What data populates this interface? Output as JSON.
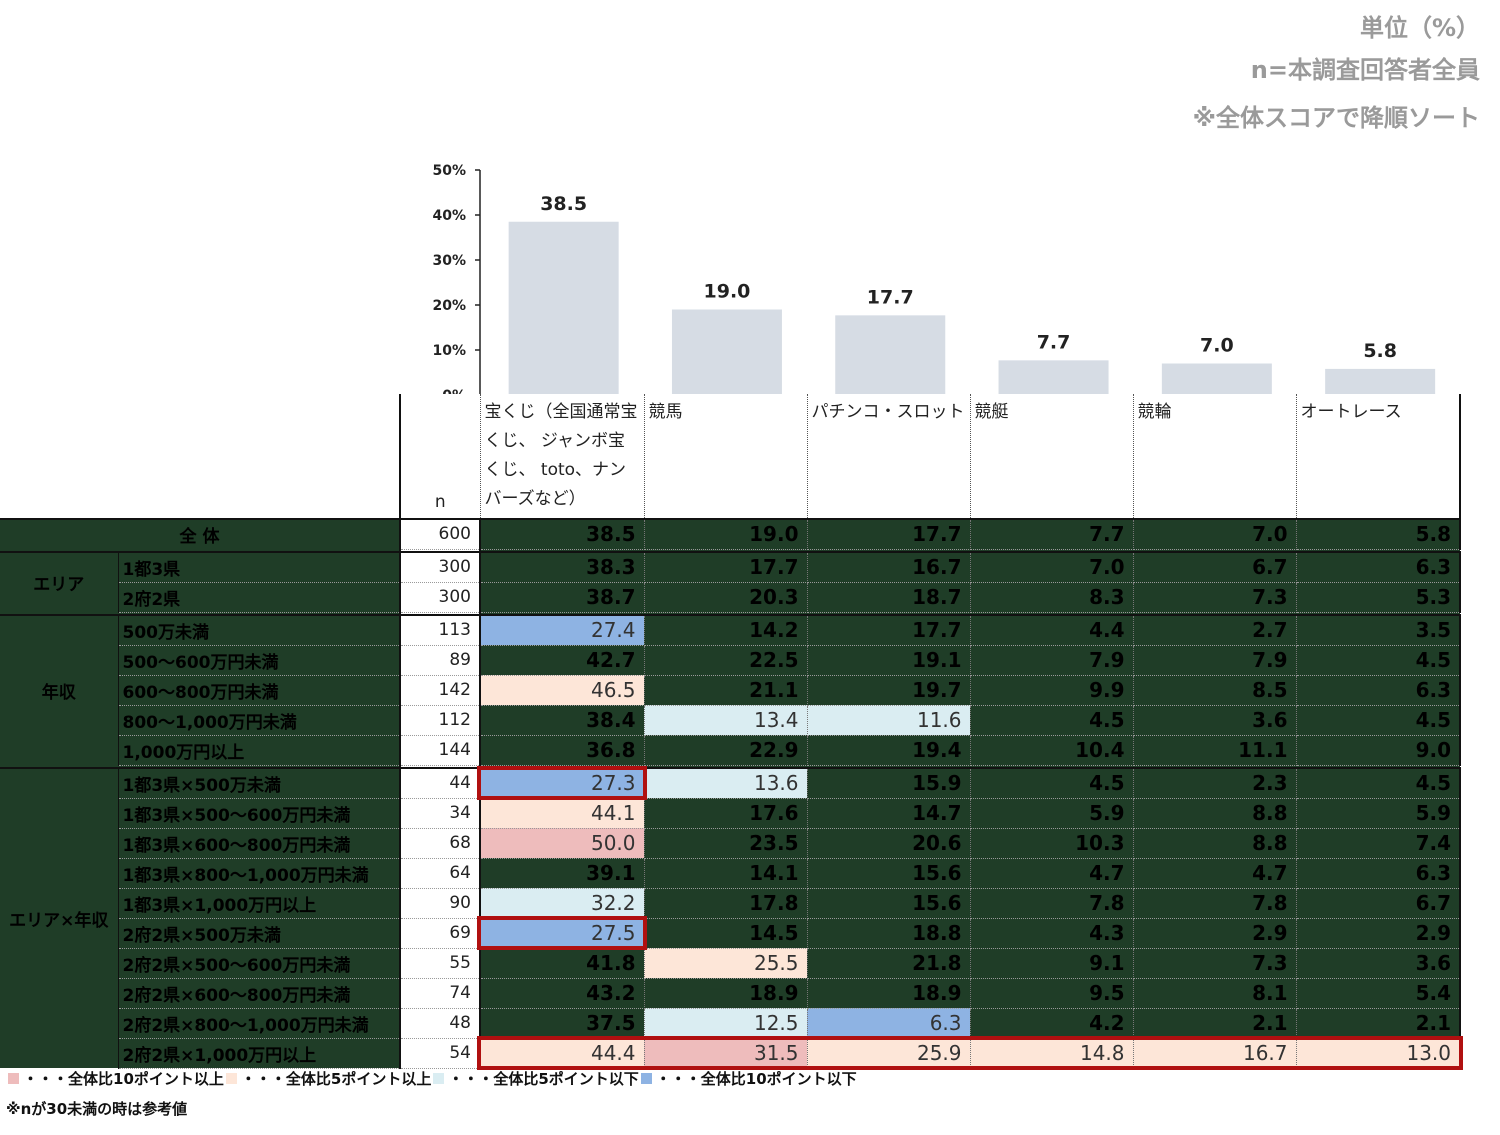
{
  "header": {
    "unit": "単位（%）",
    "base": "n=本調査回答者全員",
    "sort_note": "※全体スコアで降順ソート"
  },
  "chart_data": {
    "type": "bar",
    "categories": [
      "宝くじ（全国通常宝くじ、 ジャンボ宝くじ、 toto、ナンバーズなど）",
      "競馬",
      "パチンコ・スロット",
      "競艇",
      "競輪",
      "オートレース"
    ],
    "values": [
      38.5,
      19.0,
      17.7,
      7.7,
      7.0,
      5.8
    ],
    "value_labels": [
      "38.5",
      "19.0",
      "17.7",
      "7.7",
      "7.0",
      "5.8"
    ],
    "yticks": [
      "50%",
      "40%",
      "30%",
      "20%",
      "10%",
      "0%"
    ],
    "ylim": [
      0,
      50
    ],
    "bar_color": "#d6dce4"
  },
  "table": {
    "n_header": "n",
    "columns": [
      "宝くじ（全国通常宝くじ、 ジャンボ宝くじ、 toto、ナンバーズなど）",
      "競馬",
      "パチンコ・スロット",
      "競艇",
      "競輪",
      "オートレース"
    ],
    "groups": [
      {
        "label": "全 体",
        "rows": [
          {
            "label": "",
            "n": "600",
            "values": [
              "38.5",
              "19.0",
              "17.7",
              "7.7",
              "7.0",
              "5.8"
            ],
            "codes": [
              "",
              "",
              "",
              "",
              "",
              ""
            ]
          }
        ]
      },
      {
        "label": "エリア",
        "rows": [
          {
            "label": "1都3県",
            "n": "300",
            "values": [
              "38.3",
              "17.7",
              "16.7",
              "7.0",
              "6.7",
              "6.3"
            ],
            "codes": [
              "",
              "",
              "",
              "",
              "",
              ""
            ]
          },
          {
            "label": "2府2県",
            "n": "300",
            "values": [
              "38.7",
              "20.3",
              "18.7",
              "8.3",
              "7.3",
              "5.3"
            ],
            "codes": [
              "",
              "",
              "",
              "",
              "",
              ""
            ]
          }
        ]
      },
      {
        "label": "年収",
        "rows": [
          {
            "label": "500万未満",
            "n": "113",
            "values": [
              "27.4",
              "14.2",
              "17.7",
              "4.4",
              "2.7",
              "3.5"
            ],
            "codes": [
              "m10",
              "",
              "",
              "",
              "",
              ""
            ]
          },
          {
            "label": "500～600万円未満",
            "n": "89",
            "values": [
              "42.7",
              "22.5",
              "19.1",
              "7.9",
              "7.9",
              "4.5"
            ],
            "codes": [
              "",
              "",
              "",
              "",
              "",
              ""
            ]
          },
          {
            "label": "600～800万円未満",
            "n": "142",
            "values": [
              "46.5",
              "21.1",
              "19.7",
              "9.9",
              "8.5",
              "6.3"
            ],
            "codes": [
              "p5",
              "",
              "",
              "",
              "",
              ""
            ]
          },
          {
            "label": "800～1,000万円未満",
            "n": "112",
            "values": [
              "38.4",
              "13.4",
              "11.6",
              "4.5",
              "3.6",
              "4.5"
            ],
            "codes": [
              "",
              "m5",
              "m5",
              "",
              "",
              ""
            ]
          },
          {
            "label": "1,000万円以上",
            "n": "144",
            "values": [
              "36.8",
              "22.9",
              "19.4",
              "10.4",
              "11.1",
              "9.0"
            ],
            "codes": [
              "",
              "",
              "",
              "",
              "",
              ""
            ]
          }
        ]
      },
      {
        "label": "エリア×年収",
        "rows": [
          {
            "label": "1都3県×500万未満",
            "n": "44",
            "values": [
              "27.3",
              "13.6",
              "15.9",
              "4.5",
              "2.3",
              "4.5"
            ],
            "codes": [
              "m10",
              "m5",
              "",
              "",
              "",
              ""
            ]
          },
          {
            "label": "1都3県×500～600万円未満",
            "n": "34",
            "values": [
              "44.1",
              "17.6",
              "14.7",
              "5.9",
              "8.8",
              "5.9"
            ],
            "codes": [
              "p5",
              "",
              "",
              "",
              "",
              ""
            ]
          },
          {
            "label": "1都3県×600～800万円未満",
            "n": "68",
            "values": [
              "50.0",
              "23.5",
              "20.6",
              "10.3",
              "8.8",
              "7.4"
            ],
            "codes": [
              "p10",
              "",
              "",
              "",
              "",
              ""
            ]
          },
          {
            "label": "1都3県×800～1,000万円未満",
            "n": "64",
            "values": [
              "39.1",
              "14.1",
              "15.6",
              "4.7",
              "4.7",
              "6.3"
            ],
            "codes": [
              "",
              "",
              "",
              "",
              "",
              ""
            ]
          },
          {
            "label": "1都3県×1,000万円以上",
            "n": "90",
            "values": [
              "32.2",
              "17.8",
              "15.6",
              "7.8",
              "7.8",
              "6.7"
            ],
            "codes": [
              "m5",
              "",
              "",
              "",
              "",
              ""
            ]
          },
          {
            "label": "2府2県×500万未満",
            "n": "69",
            "values": [
              "27.5",
              "14.5",
              "18.8",
              "4.3",
              "2.9",
              "2.9"
            ],
            "codes": [
              "m10",
              "",
              "",
              "",
              "",
              ""
            ]
          },
          {
            "label": "2府2県×500～600万円未満",
            "n": "55",
            "values": [
              "41.8",
              "25.5",
              "21.8",
              "9.1",
              "7.3",
              "3.6"
            ],
            "codes": [
              "",
              "p5",
              "",
              "",
              "",
              ""
            ]
          },
          {
            "label": "2府2県×600～800万円未満",
            "n": "74",
            "values": [
              "43.2",
              "18.9",
              "18.9",
              "9.5",
              "8.1",
              "5.4"
            ],
            "codes": [
              "",
              "",
              "",
              "",
              "",
              ""
            ]
          },
          {
            "label": "2府2県×800～1,000万円未満",
            "n": "48",
            "values": [
              "37.5",
              "12.5",
              "6.3",
              "4.2",
              "2.1",
              "2.1"
            ],
            "codes": [
              "",
              "m5",
              "m10",
              "",
              "",
              ""
            ]
          },
          {
            "label": "2府2県×1,000万円以上",
            "n": "54",
            "values": [
              "44.4",
              "31.5",
              "25.9",
              "14.8",
              "16.7",
              "13.0"
            ],
            "codes": [
              "p5",
              "p10",
              "p5",
              "p5",
              "p5",
              "p5"
            ]
          }
        ]
      }
    ]
  },
  "legend": {
    "items": [
      {
        "text": "・・・全体比10ポイント以上",
        "color": "#eebcbc"
      },
      {
        "text": "・・・全体比5ポイント以上",
        "color": "#fde6d8"
      },
      {
        "text": "・・・全体比5ポイント以下",
        "color": "#daedf2"
      },
      {
        "text": "・・・全体比10ポイント以下",
        "color": "#8eb3e3"
      }
    ],
    "note": "※nが30未満の時は参考値"
  }
}
